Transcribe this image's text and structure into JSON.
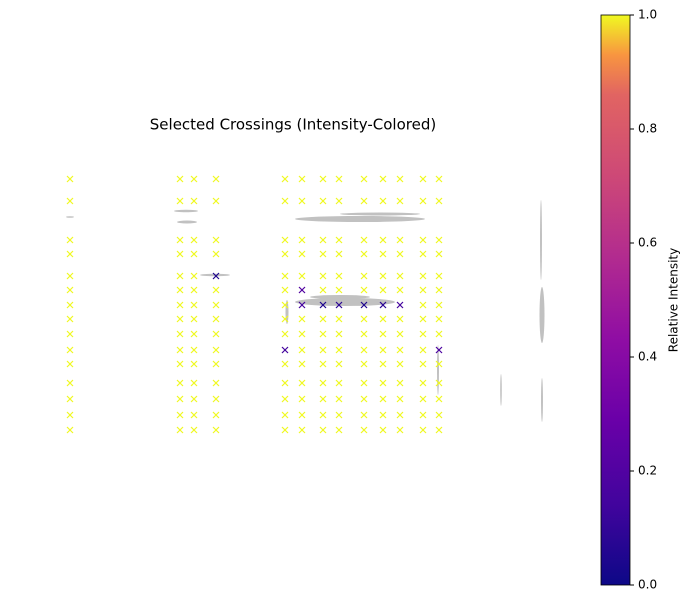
{
  "chart_data": {
    "type": "scatter",
    "title": "Selected Crossings (Intensity-Colored)",
    "colorbar_label": "Relative Intensity",
    "colormap": "plasma",
    "marker": "x",
    "clim": [
      0,
      1
    ],
    "cticks": [
      {
        "value": 0,
        "label": "0.0"
      },
      0.2,
      0.4,
      0.6,
      0.8,
      {
        "value": 1,
        "label": "1.0"
      }
    ],
    "xlim": [
      0,
      545
    ],
    "ylim": [
      445,
      0
    ],
    "x": [
      55,
      165,
      179,
      201,
      270,
      287,
      308,
      324,
      349,
      368,
      385,
      408,
      424,
      55,
      165,
      179,
      201,
      270,
      287,
      308,
      324,
      349,
      368,
      385,
      408,
      424,
      55,
      165,
      179,
      201,
      270,
      287,
      308,
      324,
      349,
      368,
      385,
      408,
      424,
      55,
      165,
      179,
      201,
      270,
      287,
      308,
      324,
      349,
      368,
      385,
      408,
      424,
      55,
      165,
      179,
      201,
      270,
      287,
      308,
      324,
      349,
      368,
      385,
      408,
      424,
      55,
      165,
      179,
      201,
      270,
      287,
      308,
      324,
      349,
      368,
      385,
      408,
      424,
      55,
      165,
      179,
      201,
      270,
      287,
      308,
      324,
      349,
      368,
      385,
      408,
      424,
      55,
      165,
      179,
      201,
      270,
      287,
      308,
      324,
      349,
      368,
      385,
      408,
      424,
      55,
      165,
      179,
      201,
      270,
      287,
      308,
      324,
      349,
      368,
      385,
      408,
      424,
      55,
      165,
      179,
      201,
      270,
      287,
      308,
      324,
      349,
      368,
      385,
      408,
      424,
      55,
      165,
      179,
      201,
      270,
      287,
      308,
      324,
      349,
      368,
      385,
      408,
      424,
      55,
      165,
      179,
      201,
      270,
      287,
      308,
      324,
      349,
      368,
      385,
      408,
      424,
      55,
      165,
      179,
      201,
      270,
      287,
      308,
      324,
      349,
      368,
      385,
      408,
      424,
      55,
      165,
      179,
      201,
      270,
      287,
      308,
      324,
      349,
      368,
      385,
      408,
      424,
      55,
      165,
      179,
      201,
      270,
      287,
      308,
      324,
      349,
      368,
      385,
      408,
      424
    ],
    "y": [
      39,
      39,
      39,
      39,
      39,
      39,
      39,
      39,
      39,
      39,
      39,
      39,
      39,
      61,
      61,
      61,
      61,
      61,
      61,
      61,
      61,
      61,
      61,
      61,
      61,
      61,
      100,
      100,
      100,
      100,
      100,
      100,
      100,
      100,
      100,
      100,
      100,
      100,
      100,
      114,
      114,
      114,
      114,
      114,
      114,
      114,
      114,
      114,
      114,
      114,
      114,
      114,
      136,
      136,
      136,
      136,
      136,
      136,
      136,
      136,
      136,
      136,
      136,
      136,
      136,
      150,
      150,
      150,
      150,
      150,
      150,
      150,
      150,
      150,
      150,
      150,
      150,
      150,
      165,
      165,
      165,
      165,
      165,
      165,
      165,
      165,
      165,
      165,
      165,
      165,
      165,
      179,
      179,
      179,
      179,
      179,
      179,
      179,
      179,
      179,
      179,
      179,
      179,
      179,
      194,
      194,
      194,
      194,
      194,
      194,
      194,
      194,
      194,
      194,
      194,
      194,
      194,
      210,
      210,
      210,
      210,
      210,
      210,
      210,
      210,
      210,
      210,
      210,
      210,
      210,
      224,
      224,
      224,
      224,
      224,
      224,
      224,
      224,
      224,
      224,
      224,
      224,
      224,
      243,
      243,
      243,
      243,
      243,
      243,
      243,
      243,
      243,
      243,
      243,
      243,
      243,
      259,
      259,
      259,
      259,
      259,
      259,
      259,
      259,
      259,
      259,
      259,
      259,
      259,
      275,
      275,
      275,
      275,
      275,
      275,
      275,
      275,
      275,
      275,
      275,
      275,
      275,
      290,
      290,
      290,
      290,
      290,
      290,
      290,
      290,
      290,
      290,
      290,
      290,
      290
    ],
    "values": [
      1,
      1,
      1,
      1,
      1,
      1,
      1,
      1,
      1,
      1,
      1,
      1,
      1,
      1,
      1,
      1,
      1,
      1,
      1,
      1,
      1,
      1,
      1,
      1,
      1,
      1,
      1,
      1,
      1,
      1,
      1,
      1,
      1,
      1,
      1,
      1,
      1,
      1,
      1,
      1,
      1,
      1,
      1,
      1,
      1,
      1,
      1,
      1,
      1,
      1,
      1,
      1,
      1,
      1,
      1,
      0.05,
      1,
      1,
      1,
      1,
      1,
      1,
      1,
      1,
      1,
      1,
      1,
      1,
      1,
      1,
      0.2,
      1,
      1,
      1,
      1,
      1,
      1,
      1,
      1,
      1,
      1,
      1,
      1,
      0.15,
      0.05,
      0.08,
      0.05,
      0.08,
      0.15,
      1,
      1,
      1,
      1,
      1,
      1,
      1,
      1,
      1,
      1,
      1,
      1,
      1,
      1,
      1,
      1,
      1,
      1,
      1,
      1,
      1,
      1,
      1,
      1,
      1,
      1,
      1,
      1,
      1,
      1,
      1,
      1,
      0.15,
      1,
      1,
      1,
      1,
      1,
      1,
      1,
      0.18,
      1,
      1,
      1,
      1,
      1,
      1,
      1,
      1,
      1,
      1,
      1,
      1,
      1,
      1,
      1,
      1,
      1,
      1,
      1,
      1,
      1,
      1,
      1,
      1,
      1,
      1,
      1,
      1,
      1,
      1,
      1,
      1,
      1,
      1,
      1,
      1,
      1,
      1,
      1,
      1,
      1,
      1,
      1,
      1,
      1,
      1,
      1,
      1,
      1,
      1,
      1,
      1,
      1,
      1,
      1,
      1,
      1,
      1,
      1,
      1,
      1,
      1,
      1,
      1,
      1
    ]
  }
}
